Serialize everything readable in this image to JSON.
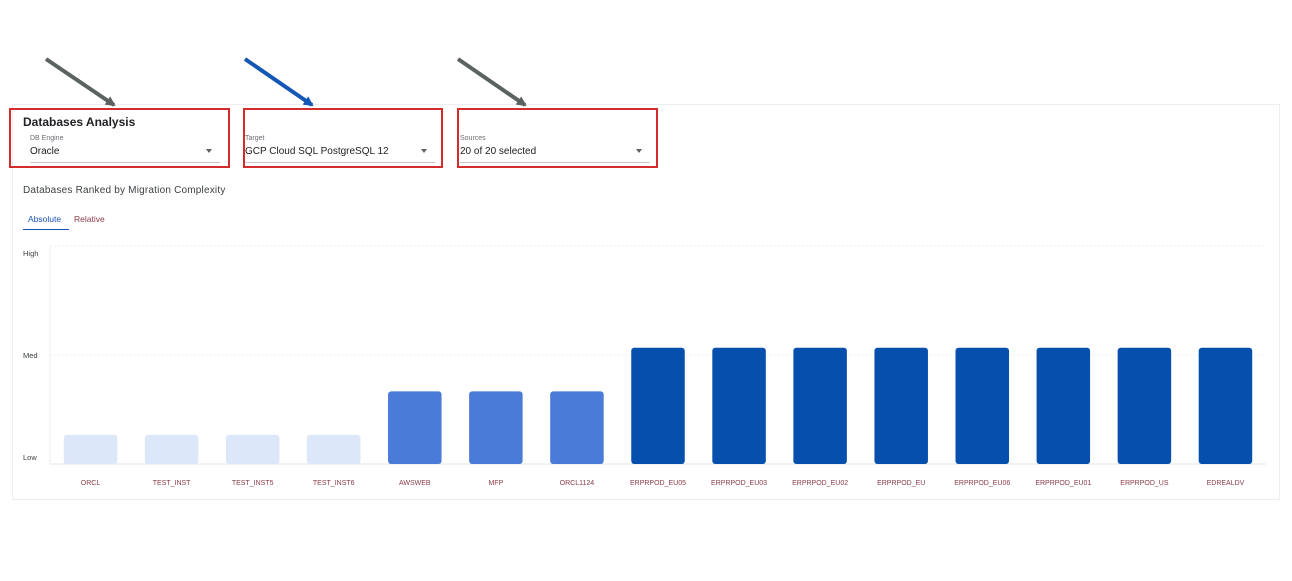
{
  "app": {
    "title": "Databases Analysis"
  },
  "filters": {
    "engine": {
      "label": "DB Engine",
      "value": "Oracle"
    },
    "target": {
      "label": "Target",
      "value": "GCP Cloud SQL PostgreSQL 12"
    },
    "sources": {
      "label": "Sources",
      "value": "20 of 20 selected"
    }
  },
  "section": {
    "subtitle": "Databases Ranked by Migration Complexity"
  },
  "tabs": [
    {
      "label": "Absolute",
      "active": true
    },
    {
      "label": "Relative",
      "active": false
    }
  ],
  "colors": {
    "low": "#dce7fa",
    "medium": "#4b7bd8",
    "high": "#064fad",
    "annotation_box": "#d32c2c",
    "arrow_gray": "#5a6360",
    "arrow_blue": "#1557b5"
  },
  "chart_data": {
    "type": "bar",
    "y_levels": [
      "Low",
      "Med",
      "High"
    ],
    "ylim": [
      0,
      3
    ],
    "categories": [
      "ORCL",
      "TEST_INST",
      "TEST_INST5",
      "TEST_INST6",
      "AWSWEB",
      "MFP",
      "ORCL1124",
      "ERPRPOD_EU05",
      "ERPRPOD_EU03",
      "ERPRPOD_EU02",
      "ERPRPOD_EU",
      "ERPRPOD_EU06",
      "ERPRPOD_EU01",
      "ERPRPOD_US",
      "EDREALDV"
    ],
    "values": [
      0.4,
      0.4,
      0.4,
      0.4,
      1.0,
      1.0,
      1.0,
      1.6,
      1.6,
      1.6,
      1.6,
      1.6,
      1.6,
      1.6,
      1.6
    ],
    "levels": [
      "low",
      "low",
      "low",
      "low",
      "medium",
      "medium",
      "medium",
      "high",
      "high",
      "high",
      "high",
      "high",
      "high",
      "high",
      "high"
    ],
    "grid": true
  }
}
